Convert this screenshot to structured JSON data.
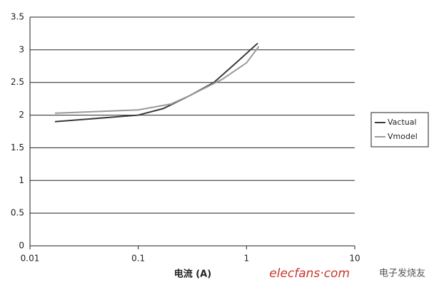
{
  "chart_data": {
    "type": "line",
    "x_label": "电流 (A)",
    "series": [
      {
        "name": "Vactual",
        "color": "#3a3a3a",
        "x": [
          0.017,
          0.1,
          0.17,
          0.3,
          0.5,
          0.8,
          1.27
        ],
        "values": [
          1.9,
          2.0,
          2.1,
          2.3,
          2.5,
          2.8,
          3.1
        ]
      },
      {
        "name": "Vmodel",
        "color": "#9a9a9a",
        "x": [
          0.017,
          0.1,
          0.2,
          0.3,
          0.6,
          1.0,
          1.3
        ],
        "values": [
          2.03,
          2.08,
          2.17,
          2.3,
          2.55,
          2.8,
          3.05
        ]
      }
    ],
    "x_log": true,
    "xlim": [
      0.01,
      10
    ],
    "xticks": [
      0.01,
      0.1,
      1,
      10
    ],
    "ylim": [
      0,
      3.5
    ],
    "yticks": [
      0,
      0.5,
      1,
      1.5,
      2,
      2.5,
      3,
      3.5
    ],
    "grid": true,
    "legend": "right"
  },
  "watermark": {
    "site": "elecfans·com",
    "brand": "电子发烧友"
  }
}
